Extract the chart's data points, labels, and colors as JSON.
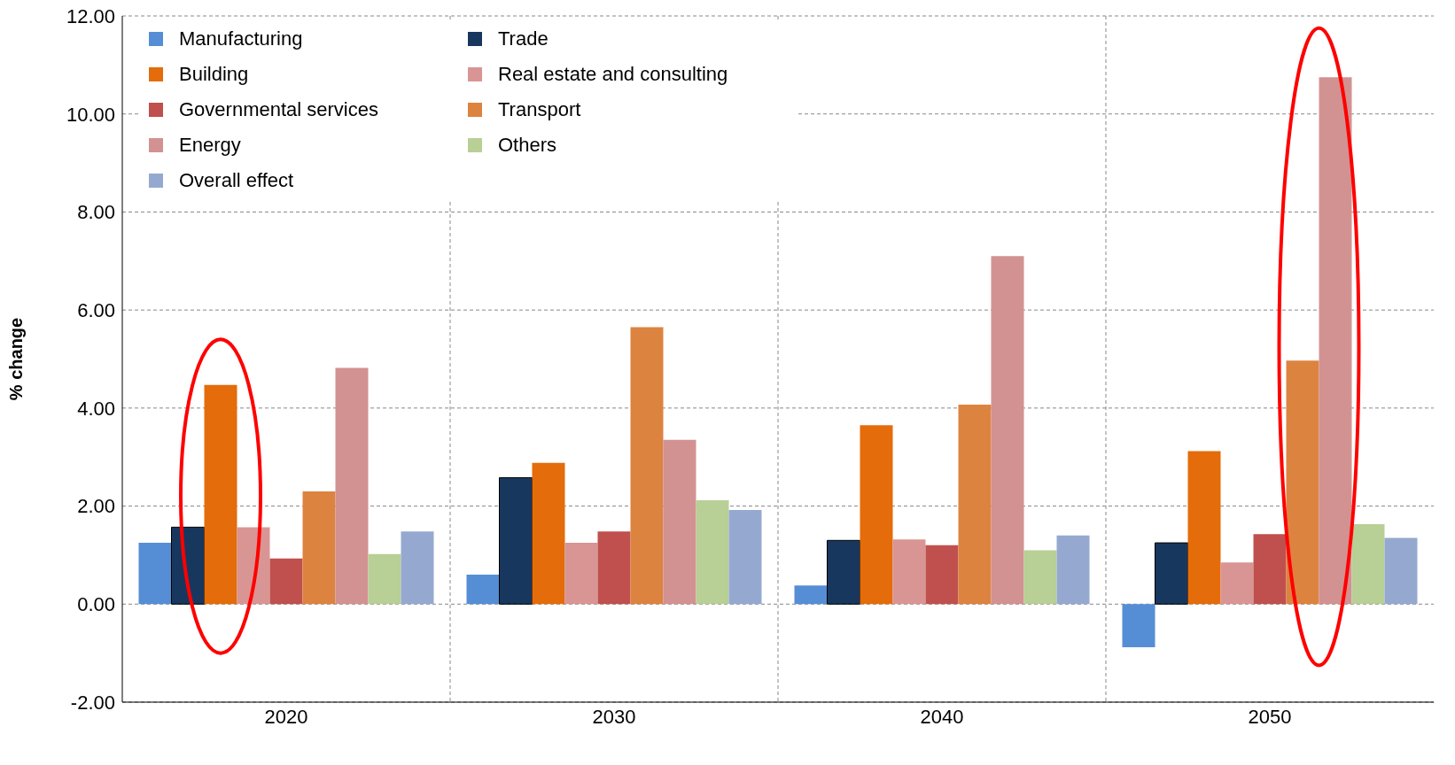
{
  "chart_data": {
    "type": "bar",
    "ylabel": "% change",
    "categories": [
      "2020",
      "2030",
      "2040",
      "2050"
    ],
    "series": [
      {
        "name": "Manufacturing",
        "color": "#558ed5",
        "values": [
          1.25,
          0.6,
          0.38,
          -0.88
        ]
      },
      {
        "name": "Trade",
        "color": "#17375e",
        "values": [
          1.57,
          2.58,
          1.3,
          1.25
        ]
      },
      {
        "name": "Building",
        "color": "#e46c0a",
        "values": [
          4.47,
          2.88,
          3.65,
          3.12
        ]
      },
      {
        "name": "Real estate and consulting",
        "color": "#d99594",
        "values": [
          1.57,
          1.25,
          1.32,
          0.85
        ]
      },
      {
        "name": "Governmental services",
        "color": "#c0504d",
        "values": [
          0.93,
          1.48,
          1.2,
          1.43
        ]
      },
      {
        "name": "Transport",
        "color": "#dd8340",
        "values": [
          2.3,
          5.65,
          4.07,
          4.97
        ]
      },
      {
        "name": "Energy",
        "color": "#d29291",
        "values": [
          4.82,
          3.35,
          7.1,
          10.75
        ]
      },
      {
        "name": "Others",
        "color": "#b8cf96",
        "values": [
          1.02,
          2.12,
          1.1,
          1.63
        ]
      },
      {
        "name": "Overall effect",
        "color": "#95a9d0",
        "values": [
          1.48,
          1.92,
          1.4,
          1.35
        ]
      }
    ],
    "ylim": [
      -2,
      12
    ],
    "yticks": [
      {
        "value": -2,
        "label": "-2.00"
      },
      {
        "value": 0,
        "label": "0.00"
      },
      {
        "value": 2,
        "label": "2.00"
      },
      {
        "value": 4,
        "label": "4.00"
      },
      {
        "value": 6,
        "label": "6.00"
      },
      {
        "value": 8,
        "label": "8.00"
      },
      {
        "value": 10,
        "label": "10.00"
      },
      {
        "value": 12,
        "label": "12.00"
      }
    ],
    "grid": true,
    "legend": "top left"
  }
}
